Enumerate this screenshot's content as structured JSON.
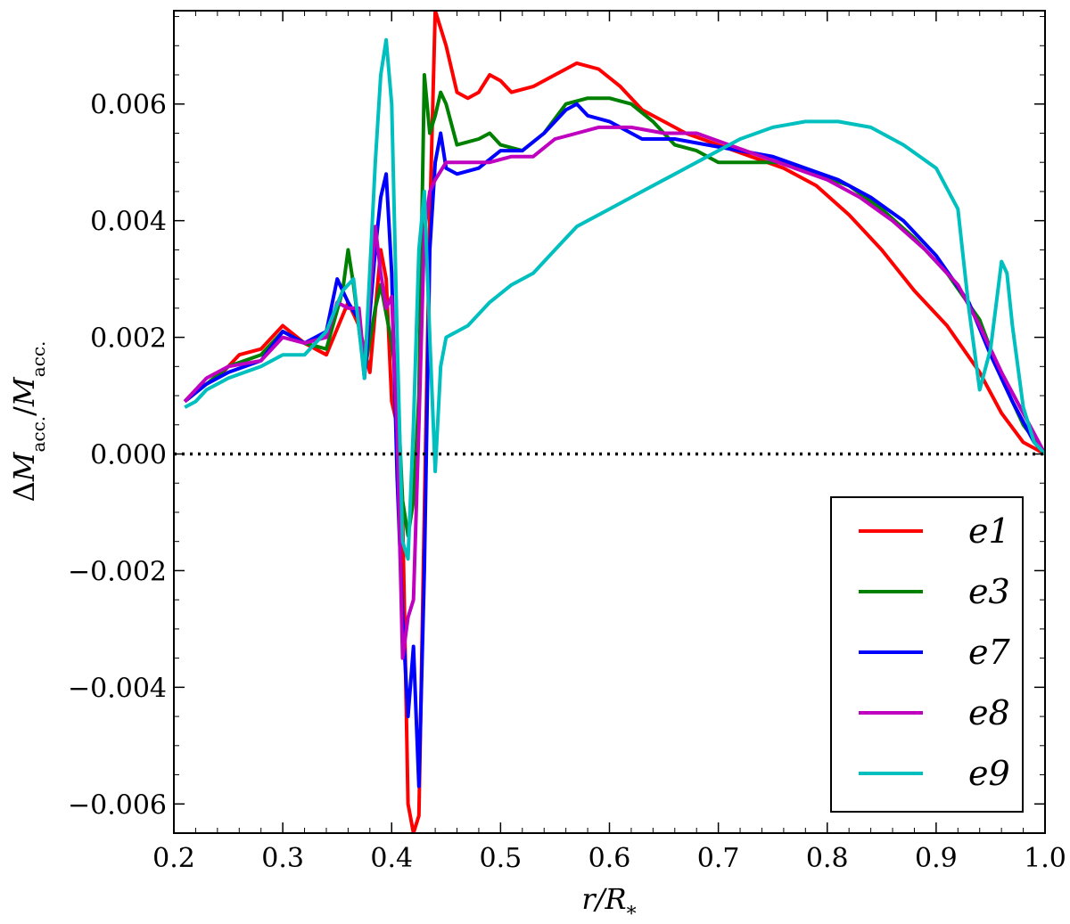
{
  "chart_data": {
    "type": "line",
    "title": "",
    "xlabel": "r/R*",
    "ylabel": "ΔM_acc./M_acc.",
    "xlabel_parts": {
      "main": "r/R",
      "sub": "*"
    },
    "ylabel_parts": {
      "delta": "Δ",
      "m1": "M",
      "sub1": "acc.",
      "slash": "/",
      "m2": "M",
      "sub2": "acc."
    },
    "xlim": [
      0.2,
      1.0
    ],
    "ylim": [
      -0.0065,
      0.0076
    ],
    "xticks": [
      0.2,
      0.3,
      0.4,
      0.5,
      0.6,
      0.7,
      0.8,
      0.9,
      1.0
    ],
    "xtick_labels": [
      "0.2",
      "0.3",
      "0.4",
      "0.5",
      "0.6",
      "0.7",
      "0.8",
      "0.9",
      "1.0"
    ],
    "yticks": [
      -0.006,
      -0.004,
      -0.002,
      0.0,
      0.002,
      0.004,
      0.006
    ],
    "ytick_labels": [
      "−0.006",
      "−0.004",
      "−0.002",
      "0.000",
      "0.002",
      "0.004",
      "0.006"
    ],
    "grid": false,
    "legend_position": "bottom-right",
    "reference_line": {
      "y": 0.0,
      "style": "dotted",
      "color": "#000000"
    },
    "series": [
      {
        "name": "e1",
        "color": "#ff0000",
        "points": [
          [
            0.21,
            0.0009
          ],
          [
            0.22,
            0.0011
          ],
          [
            0.24,
            0.0013
          ],
          [
            0.26,
            0.0017
          ],
          [
            0.28,
            0.0018
          ],
          [
            0.3,
            0.0022
          ],
          [
            0.32,
            0.0019
          ],
          [
            0.34,
            0.0017
          ],
          [
            0.36,
            0.0026
          ],
          [
            0.37,
            0.0022
          ],
          [
            0.38,
            0.0014
          ],
          [
            0.39,
            0.0035
          ],
          [
            0.395,
            0.003
          ],
          [
            0.4,
            0.0009
          ],
          [
            0.405,
            0.0005
          ],
          [
            0.41,
            -0.001
          ],
          [
            0.415,
            -0.006
          ],
          [
            0.42,
            -0.0065
          ],
          [
            0.425,
            -0.0062
          ],
          [
            0.43,
            -0.001
          ],
          [
            0.435,
            0.004
          ],
          [
            0.44,
            0.0076
          ],
          [
            0.45,
            0.007
          ],
          [
            0.46,
            0.0062
          ],
          [
            0.47,
            0.0061
          ],
          [
            0.48,
            0.0062
          ],
          [
            0.49,
            0.0065
          ],
          [
            0.5,
            0.0064
          ],
          [
            0.51,
            0.0062
          ],
          [
            0.53,
            0.0063
          ],
          [
            0.55,
            0.0065
          ],
          [
            0.57,
            0.0067
          ],
          [
            0.59,
            0.0066
          ],
          [
            0.61,
            0.0063
          ],
          [
            0.63,
            0.0059
          ],
          [
            0.65,
            0.0057
          ],
          [
            0.67,
            0.0055
          ],
          [
            0.7,
            0.0053
          ],
          [
            0.73,
            0.0051
          ],
          [
            0.76,
            0.0049
          ],
          [
            0.79,
            0.0046
          ],
          [
            0.82,
            0.0041
          ],
          [
            0.85,
            0.0035
          ],
          [
            0.88,
            0.0028
          ],
          [
            0.91,
            0.0022
          ],
          [
            0.94,
            0.0014
          ],
          [
            0.96,
            0.0007
          ],
          [
            0.98,
            0.0002
          ],
          [
            1.0,
            0.0
          ]
        ]
      },
      {
        "name": "e3",
        "color": "#008000",
        "points": [
          [
            0.21,
            0.0009
          ],
          [
            0.23,
            0.0012
          ],
          [
            0.25,
            0.0015
          ],
          [
            0.28,
            0.0017
          ],
          [
            0.3,
            0.0021
          ],
          [
            0.32,
            0.0019
          ],
          [
            0.34,
            0.0018
          ],
          [
            0.355,
            0.0028
          ],
          [
            0.36,
            0.0035
          ],
          [
            0.365,
            0.0029
          ],
          [
            0.375,
            0.0014
          ],
          [
            0.385,
            0.0025
          ],
          [
            0.39,
            0.0029
          ],
          [
            0.4,
            0.0019
          ],
          [
            0.405,
            0.0012
          ],
          [
            0.41,
            -0.0008
          ],
          [
            0.415,
            -0.0014
          ],
          [
            0.42,
            -0.0008
          ],
          [
            0.425,
            0.001
          ],
          [
            0.43,
            0.0065
          ],
          [
            0.435,
            0.0055
          ],
          [
            0.44,
            0.0058
          ],
          [
            0.445,
            0.0062
          ],
          [
            0.45,
            0.006
          ],
          [
            0.46,
            0.0053
          ],
          [
            0.48,
            0.0054
          ],
          [
            0.49,
            0.0055
          ],
          [
            0.5,
            0.0053
          ],
          [
            0.52,
            0.0052
          ],
          [
            0.54,
            0.0055
          ],
          [
            0.56,
            0.006
          ],
          [
            0.58,
            0.0061
          ],
          [
            0.6,
            0.0061
          ],
          [
            0.62,
            0.006
          ],
          [
            0.64,
            0.0057
          ],
          [
            0.66,
            0.0053
          ],
          [
            0.68,
            0.0052
          ],
          [
            0.7,
            0.005
          ],
          [
            0.73,
            0.005
          ],
          [
            0.76,
            0.005
          ],
          [
            0.79,
            0.0048
          ],
          [
            0.82,
            0.0046
          ],
          [
            0.85,
            0.0042
          ],
          [
            0.88,
            0.0037
          ],
          [
            0.91,
            0.0031
          ],
          [
            0.94,
            0.0023
          ],
          [
            0.96,
            0.0013
          ],
          [
            0.98,
            0.0005
          ],
          [
            1.0,
            0.0
          ]
        ]
      },
      {
        "name": "e7",
        "color": "#0000ff",
        "points": [
          [
            0.21,
            0.0009
          ],
          [
            0.23,
            0.0012
          ],
          [
            0.25,
            0.0014
          ],
          [
            0.28,
            0.0016
          ],
          [
            0.3,
            0.0021
          ],
          [
            0.32,
            0.0019
          ],
          [
            0.34,
            0.0021
          ],
          [
            0.35,
            0.003
          ],
          [
            0.36,
            0.0026
          ],
          [
            0.37,
            0.0023
          ],
          [
            0.375,
            0.0013
          ],
          [
            0.385,
            0.0035
          ],
          [
            0.39,
            0.0044
          ],
          [
            0.395,
            0.0048
          ],
          [
            0.4,
            0.0031
          ],
          [
            0.405,
            -0.0004
          ],
          [
            0.41,
            -0.0028
          ],
          [
            0.415,
            -0.0045
          ],
          [
            0.42,
            -0.0033
          ],
          [
            0.425,
            -0.0057
          ],
          [
            0.43,
            -0.002
          ],
          [
            0.435,
            0.0035
          ],
          [
            0.44,
            0.005
          ],
          [
            0.445,
            0.0055
          ],
          [
            0.45,
            0.0049
          ],
          [
            0.46,
            0.0048
          ],
          [
            0.48,
            0.0049
          ],
          [
            0.5,
            0.0052
          ],
          [
            0.52,
            0.0052
          ],
          [
            0.54,
            0.0055
          ],
          [
            0.56,
            0.0059
          ],
          [
            0.57,
            0.006
          ],
          [
            0.58,
            0.0058
          ],
          [
            0.6,
            0.0057
          ],
          [
            0.63,
            0.0054
          ],
          [
            0.66,
            0.0054
          ],
          [
            0.69,
            0.0053
          ],
          [
            0.72,
            0.0052
          ],
          [
            0.75,
            0.0051
          ],
          [
            0.78,
            0.0049
          ],
          [
            0.81,
            0.0047
          ],
          [
            0.84,
            0.0044
          ],
          [
            0.87,
            0.004
          ],
          [
            0.9,
            0.0034
          ],
          [
            0.93,
            0.0026
          ],
          [
            0.95,
            0.0017
          ],
          [
            0.97,
            0.0009
          ],
          [
            0.99,
            0.0002
          ],
          [
            1.0,
            0.0
          ]
        ]
      },
      {
        "name": "e8",
        "color": "#bf00bf",
        "points": [
          [
            0.21,
            0.0009
          ],
          [
            0.23,
            0.0013
          ],
          [
            0.25,
            0.0015
          ],
          [
            0.28,
            0.0016
          ],
          [
            0.3,
            0.002
          ],
          [
            0.32,
            0.0019
          ],
          [
            0.34,
            0.002
          ],
          [
            0.35,
            0.0026
          ],
          [
            0.36,
            0.0025
          ],
          [
            0.37,
            0.0025
          ],
          [
            0.375,
            0.0015
          ],
          [
            0.385,
            0.0039
          ],
          [
            0.39,
            0.0031
          ],
          [
            0.395,
            0.0025
          ],
          [
            0.4,
            0.0027
          ],
          [
            0.405,
            0.0004
          ],
          [
            0.41,
            -0.0035
          ],
          [
            0.415,
            -0.0028
          ],
          [
            0.42,
            -0.0025
          ],
          [
            0.425,
            0.0005
          ],
          [
            0.43,
            0.0038
          ],
          [
            0.435,
            0.0045
          ],
          [
            0.44,
            0.0047
          ],
          [
            0.45,
            0.005
          ],
          [
            0.47,
            0.005
          ],
          [
            0.49,
            0.005
          ],
          [
            0.51,
            0.0051
          ],
          [
            0.53,
            0.0051
          ],
          [
            0.55,
            0.0054
          ],
          [
            0.57,
            0.0055
          ],
          [
            0.59,
            0.0056
          ],
          [
            0.62,
            0.0056
          ],
          [
            0.65,
            0.0055
          ],
          [
            0.68,
            0.0055
          ],
          [
            0.71,
            0.0053
          ],
          [
            0.74,
            0.0051
          ],
          [
            0.77,
            0.0049
          ],
          [
            0.8,
            0.0047
          ],
          [
            0.83,
            0.0044
          ],
          [
            0.86,
            0.004
          ],
          [
            0.89,
            0.0035
          ],
          [
            0.92,
            0.0029
          ],
          [
            0.94,
            0.0022
          ],
          [
            0.96,
            0.0014
          ],
          [
            0.98,
            0.0007
          ],
          [
            1.0,
            0.0
          ]
        ]
      },
      {
        "name": "e9",
        "color": "#00bfbf",
        "points": [
          [
            0.21,
            0.0008
          ],
          [
            0.22,
            0.0009
          ],
          [
            0.23,
            0.0011
          ],
          [
            0.25,
            0.0013
          ],
          [
            0.28,
            0.0015
          ],
          [
            0.3,
            0.0017
          ],
          [
            0.32,
            0.0017
          ],
          [
            0.34,
            0.0021
          ],
          [
            0.355,
            0.0028
          ],
          [
            0.365,
            0.003
          ],
          [
            0.375,
            0.0013
          ],
          [
            0.385,
            0.005
          ],
          [
            0.39,
            0.0065
          ],
          [
            0.395,
            0.0071
          ],
          [
            0.4,
            0.006
          ],
          [
            0.405,
            0.002
          ],
          [
            0.41,
            -0.0015
          ],
          [
            0.415,
            -0.0018
          ],
          [
            0.42,
            0.0005
          ],
          [
            0.425,
            0.0035
          ],
          [
            0.43,
            0.0045
          ],
          [
            0.435,
            0.002
          ],
          [
            0.44,
            -0.0003
          ],
          [
            0.445,
            0.0015
          ],
          [
            0.45,
            0.002
          ],
          [
            0.47,
            0.0022
          ],
          [
            0.49,
            0.0026
          ],
          [
            0.51,
            0.0029
          ],
          [
            0.53,
            0.0031
          ],
          [
            0.55,
            0.0035
          ],
          [
            0.57,
            0.0039
          ],
          [
            0.6,
            0.0042
          ],
          [
            0.63,
            0.0045
          ],
          [
            0.66,
            0.0048
          ],
          [
            0.69,
            0.0051
          ],
          [
            0.72,
            0.0054
          ],
          [
            0.75,
            0.0056
          ],
          [
            0.78,
            0.0057
          ],
          [
            0.81,
            0.0057
          ],
          [
            0.84,
            0.0056
          ],
          [
            0.87,
            0.0053
          ],
          [
            0.9,
            0.0049
          ],
          [
            0.92,
            0.0042
          ],
          [
            0.93,
            0.0025
          ],
          [
            0.94,
            0.0011
          ],
          [
            0.95,
            0.0018
          ],
          [
            0.96,
            0.0033
          ],
          [
            0.965,
            0.0031
          ],
          [
            0.97,
            0.0022
          ],
          [
            0.98,
            0.0008
          ],
          [
            0.99,
            0.0002
          ],
          [
            1.0,
            0.0
          ]
        ]
      }
    ]
  }
}
